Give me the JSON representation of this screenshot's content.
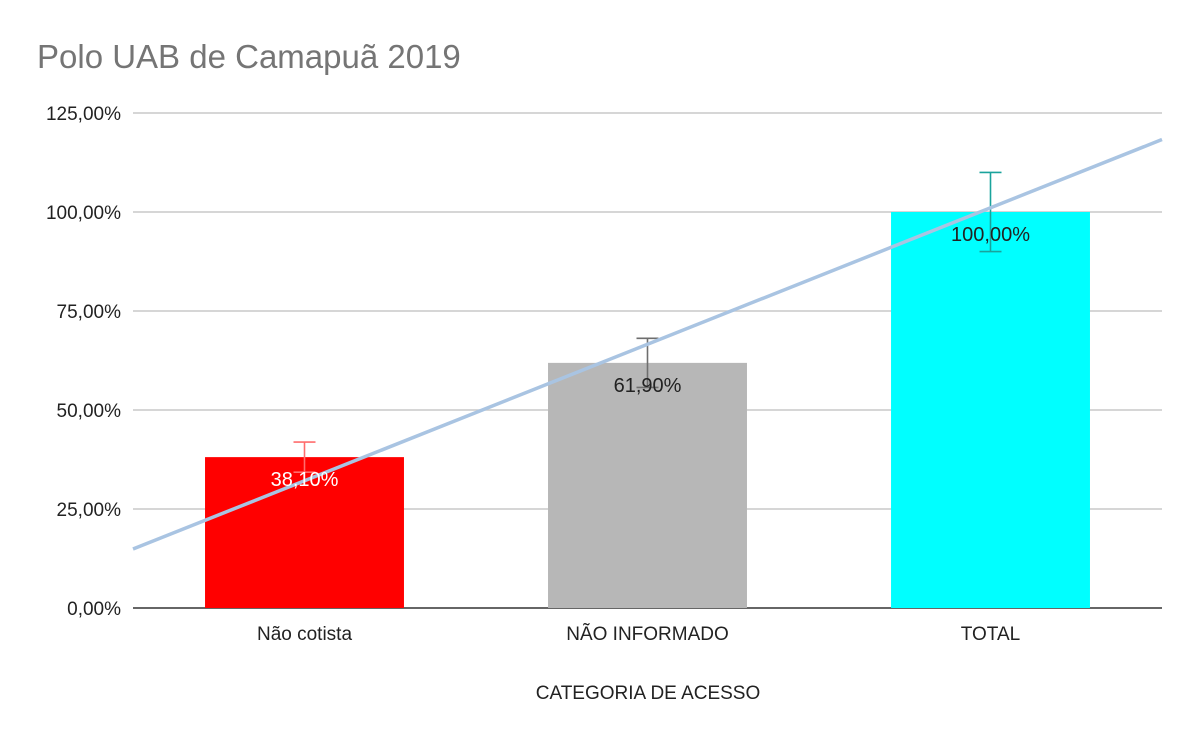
{
  "chart_data": {
    "type": "bar",
    "title": "Polo UAB de Camapuã 2019",
    "xlabel": "CATEGORIA DE ACESSO",
    "ylabel": "",
    "categories": [
      "Não cotista",
      "NÃO INFORMADO",
      "TOTAL"
    ],
    "values": [
      38.1,
      61.9,
      100.0
    ],
    "data_labels": [
      "38,10%",
      "61,90%",
      "100,00%"
    ],
    "error_bars": [
      {
        "low": 34.3,
        "high": 41.9
      },
      {
        "low": 55.7,
        "high": 68.1
      },
      {
        "low": 90.0,
        "high": 110.0
      }
    ],
    "bar_colors": [
      "#ff0000",
      "#b7b7b7",
      "#00ffff"
    ],
    "error_bar_colors": [
      "#ff6d6d",
      "#6e6e6e",
      "#1aa39c"
    ],
    "label_colors": [
      "#ffffff",
      "#222222",
      "#222222"
    ],
    "trendline": {
      "type": "linear",
      "color": "#a9c4e2",
      "y_start": 14.9,
      "y_end": 118.3
    },
    "ylim": [
      0,
      125
    ],
    "yticks": [
      0,
      25,
      50,
      75,
      100,
      125
    ],
    "ytick_labels": [
      "0,00%",
      "25,00%",
      "50,00%",
      "75,00%",
      "100,00%",
      "125,00%"
    ],
    "grid": true,
    "legend": "none"
  }
}
